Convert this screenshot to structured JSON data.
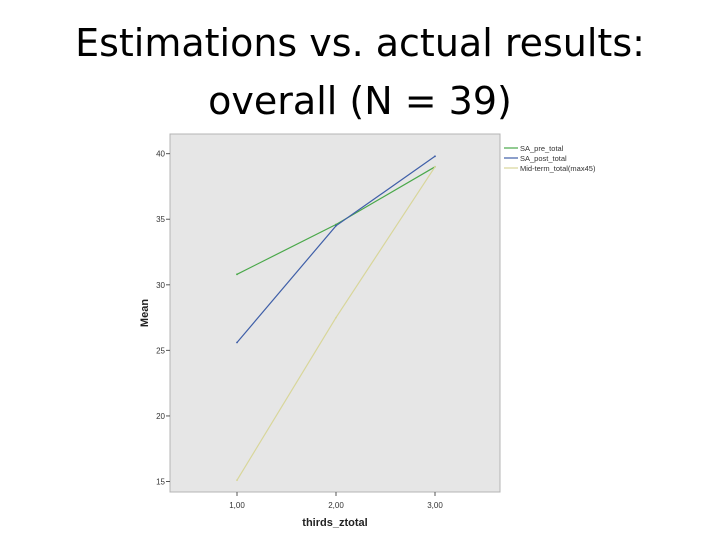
{
  "slide": {
    "title_line1": "Estimations vs. actual results:",
    "title_line2": "overall (N = 39)"
  },
  "chart_data": {
    "type": "line",
    "x": [
      "1,00",
      "2,00",
      "3,00"
    ],
    "xlabel": "thirds_ztotal",
    "ylabel": "Mean",
    "ylim": [
      14.2,
      41.5
    ],
    "yticks": [
      15,
      20,
      25,
      30,
      35,
      40
    ],
    "ytick_labels": [
      "15",
      "20",
      "25",
      "30",
      "35",
      "40"
    ],
    "grid": false,
    "background": "#e6e6e6",
    "legend_position": "outside-right",
    "series": [
      {
        "name": "SA_pre_total",
        "values": [
          30.8,
          34.6,
          39.0
        ],
        "color": "#4aa84a"
      },
      {
        "name": "SA_post_total",
        "values": [
          25.6,
          34.5,
          39.8
        ],
        "color": "#3f5fa8"
      },
      {
        "name": "Mid-term_total(max45)",
        "values": [
          15.1,
          27.5,
          39.0
        ],
        "color": "#d8d69a"
      }
    ]
  }
}
